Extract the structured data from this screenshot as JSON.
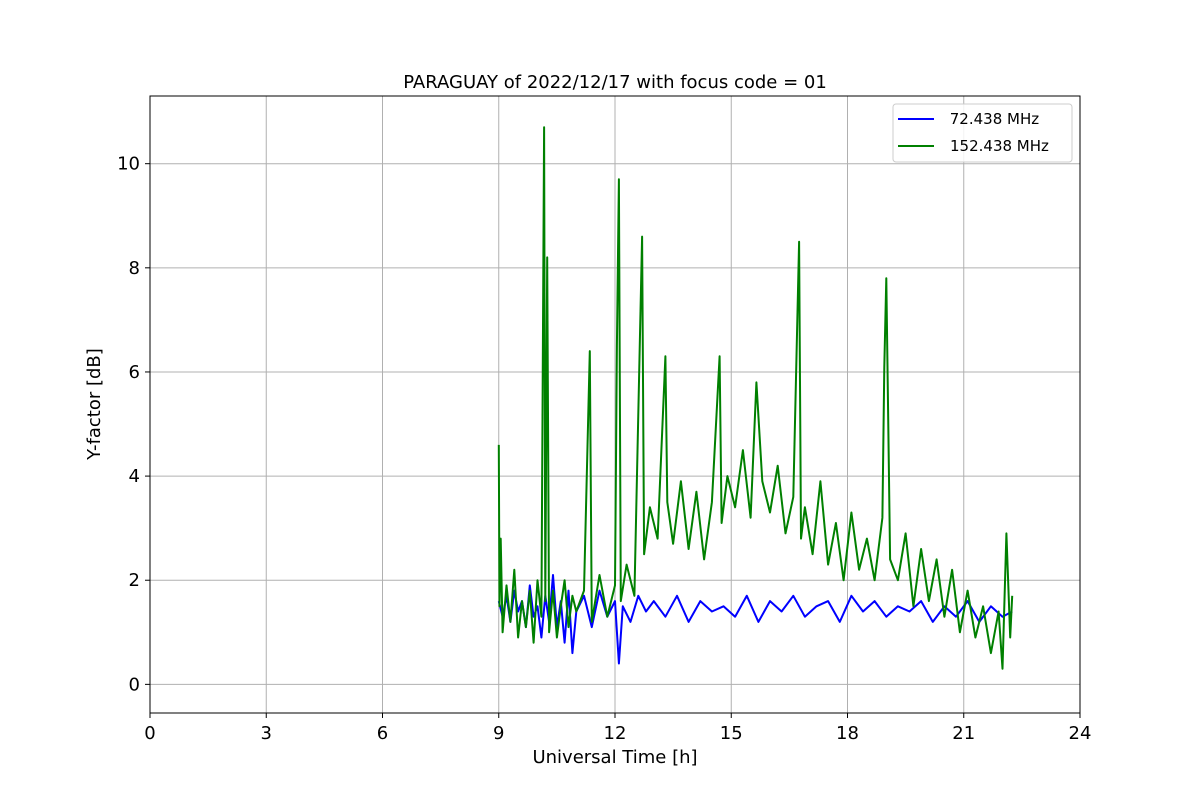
{
  "chart_data": {
    "type": "line",
    "title": "PARAGUAY of 2022/12/17 with focus code = 01",
    "xlabel": "Universal Time [h]",
    "ylabel": "Y-factor [dB]",
    "xlim": [
      0,
      24
    ],
    "ylim": [
      -0.55,
      11.3
    ],
    "xticks": [
      0,
      3,
      6,
      9,
      12,
      15,
      18,
      21,
      24
    ],
    "yticks": [
      0,
      2,
      4,
      6,
      8,
      10
    ],
    "grid": true,
    "legend_position": "top-right",
    "series": [
      {
        "name": " 72.438 MHz",
        "color": "#0000ff",
        "x": [
          9.0,
          9.1,
          9.2,
          9.3,
          9.4,
          9.5,
          9.6,
          9.7,
          9.8,
          9.9,
          10.0,
          10.1,
          10.2,
          10.3,
          10.4,
          10.5,
          10.6,
          10.7,
          10.8,
          10.9,
          11.0,
          11.2,
          11.4,
          11.6,
          11.8,
          12.0,
          12.1,
          12.2,
          12.4,
          12.6,
          12.8,
          13.0,
          13.3,
          13.6,
          13.9,
          14.2,
          14.5,
          14.8,
          15.1,
          15.4,
          15.7,
          16.0,
          16.3,
          16.6,
          16.9,
          17.2,
          17.5,
          17.8,
          18.1,
          18.4,
          18.7,
          19.0,
          19.3,
          19.6,
          19.9,
          20.2,
          20.5,
          20.8,
          21.1,
          21.4,
          21.7,
          22.0,
          22.25
        ],
        "y": [
          1.6,
          1.3,
          1.7,
          1.2,
          1.8,
          1.4,
          1.6,
          1.1,
          1.9,
          1.3,
          1.5,
          0.9,
          1.7,
          1.2,
          2.1,
          1.1,
          1.6,
          0.8,
          1.8,
          0.6,
          1.4,
          1.7,
          1.1,
          1.8,
          1.3,
          1.6,
          0.4,
          1.5,
          1.2,
          1.7,
          1.4,
          1.6,
          1.3,
          1.7,
          1.2,
          1.6,
          1.4,
          1.5,
          1.3,
          1.7,
          1.2,
          1.6,
          1.4,
          1.7,
          1.3,
          1.5,
          1.6,
          1.2,
          1.7,
          1.4,
          1.6,
          1.3,
          1.5,
          1.4,
          1.6,
          1.2,
          1.5,
          1.3,
          1.6,
          1.2,
          1.5,
          1.3,
          1.4
        ]
      },
      {
        "name": "152.438 MHz",
        "color": "#008000",
        "x": [
          9.0,
          9.02,
          9.05,
          9.1,
          9.2,
          9.3,
          9.4,
          9.5,
          9.6,
          9.7,
          9.8,
          9.9,
          10.0,
          10.1,
          10.17,
          10.2,
          10.25,
          10.3,
          10.4,
          10.5,
          10.6,
          10.7,
          10.8,
          10.9,
          11.0,
          11.2,
          11.35,
          11.4,
          11.6,
          11.8,
          12.0,
          12.05,
          12.1,
          12.15,
          12.3,
          12.5,
          12.7,
          12.75,
          12.9,
          13.1,
          13.3,
          13.35,
          13.5,
          13.7,
          13.9,
          14.1,
          14.3,
          14.5,
          14.7,
          14.75,
          14.9,
          15.1,
          15.3,
          15.5,
          15.65,
          15.8,
          16.0,
          16.2,
          16.4,
          16.6,
          16.75,
          16.8,
          16.9,
          17.1,
          17.3,
          17.5,
          17.7,
          17.9,
          18.1,
          18.3,
          18.5,
          18.7,
          18.9,
          18.95,
          19.0,
          19.1,
          19.3,
          19.5,
          19.7,
          19.9,
          20.1,
          20.3,
          20.5,
          20.7,
          20.9,
          21.1,
          21.3,
          21.5,
          21.7,
          21.9,
          22.0,
          22.1,
          22.2,
          22.25
        ],
        "y": [
          4.6,
          1.5,
          2.8,
          1.0,
          1.9,
          1.2,
          2.2,
          0.9,
          1.6,
          1.1,
          1.8,
          0.8,
          2.0,
          1.3,
          10.7,
          1.6,
          8.2,
          1.0,
          1.8,
          0.9,
          1.5,
          2.0,
          1.1,
          1.7,
          1.4,
          1.8,
          6.4,
          1.2,
          2.1,
          1.3,
          1.9,
          6.5,
          9.7,
          1.6,
          2.3,
          1.7,
          8.6,
          2.5,
          3.4,
          2.8,
          6.3,
          3.5,
          2.7,
          3.9,
          2.6,
          3.7,
          2.4,
          3.5,
          6.3,
          3.1,
          4.0,
          3.4,
          4.5,
          3.2,
          5.8,
          3.9,
          3.3,
          4.2,
          2.9,
          3.6,
          8.5,
          2.8,
          3.4,
          2.5,
          3.9,
          2.3,
          3.1,
          2.0,
          3.3,
          2.2,
          2.8,
          2.0,
          3.2,
          6.1,
          7.8,
          2.4,
          2.0,
          2.9,
          1.5,
          2.6,
          1.6,
          2.4,
          1.3,
          2.2,
          1.0,
          1.8,
          0.9,
          1.5,
          0.6,
          1.4,
          0.3,
          2.9,
          0.9,
          1.7
        ]
      }
    ]
  }
}
